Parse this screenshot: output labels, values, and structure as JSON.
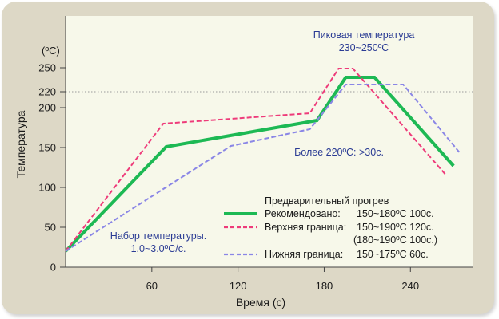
{
  "chart_data": {
    "type": "line",
    "xlabel": "Время (с)",
    "ylabel": "Температура",
    "unit_label": "(ºC)",
    "xlim": [
      0,
      280
    ],
    "ylim": [
      0,
      270
    ],
    "x_ticks": [
      60,
      120,
      180,
      240
    ],
    "y_ticks": [
      0,
      50,
      100,
      150,
      200,
      220,
      250
    ],
    "reference_line": {
      "y": 220,
      "style": "dotted"
    },
    "series": [
      {
        "key": "recommended",
        "color": "#1db954",
        "dash": "solid",
        "points": [
          [
            0,
            20
          ],
          [
            70,
            151
          ],
          [
            175,
            184
          ],
          [
            195,
            238
          ],
          [
            215,
            238
          ],
          [
            270,
            127
          ]
        ]
      },
      {
        "key": "upper",
        "color": "#ee3b7a",
        "dash": "dashed",
        "points": [
          [
            0,
            20
          ],
          [
            68,
            180
          ],
          [
            170,
            193
          ],
          [
            190,
            249
          ],
          [
            200,
            249
          ],
          [
            265,
            115
          ]
        ]
      },
      {
        "key": "lower",
        "color": "#8a86e6",
        "dash": "dashed",
        "points": [
          [
            0,
            20
          ],
          [
            115,
            152
          ],
          [
            170,
            173
          ],
          [
            195,
            229
          ],
          [
            235,
            229
          ],
          [
            275,
            142
          ]
        ]
      }
    ],
    "annotations": {
      "peak_line1": "Пиковая температура",
      "peak_line2": "230~250ºC",
      "above_220": "Более 220ºC: >30c.",
      "ramp_line1": "Набор температуры.",
      "ramp_line2": "1.0~3.0ºC/c."
    },
    "legend": {
      "title": "Предварительный прогрев",
      "items": [
        {
          "series": "recommended",
          "label": "Рекомендовано:",
          "value": "150~180ºC 100c."
        },
        {
          "series": "upper",
          "label": "Верхняя граница:",
          "value": "150~190ºC 120c.",
          "extra": "(180~190ºC 100c.)"
        },
        {
          "series": "lower",
          "label": "Нижняя граница:",
          "value": "150~175ºC 60c."
        }
      ]
    }
  }
}
